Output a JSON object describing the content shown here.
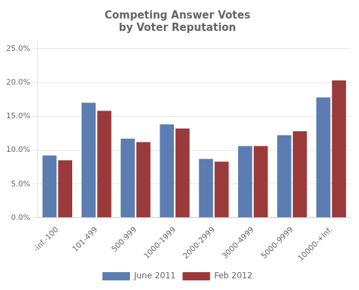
{
  "chart_data": {
    "type": "bar",
    "title": "Competing Answer Votes\nby Voter Reputation",
    "categories": [
      "-inf.-100",
      "101-499",
      "500-999",
      "1000-1999",
      "2000-2999",
      "3000-4999",
      "5000-9999",
      "10000-+inf."
    ],
    "series": [
      {
        "name": "June 2011",
        "color": "#5b7db1",
        "values": [
          0.092,
          0.17,
          0.117,
          0.138,
          0.087,
          0.106,
          0.122,
          0.178
        ]
      },
      {
        "name": "Feb 2012",
        "color": "#9b3a3a",
        "values": [
          0.085,
          0.158,
          0.112,
          0.132,
          0.083,
          0.106,
          0.128,
          0.203
        ]
      }
    ],
    "ylim": [
      0.0,
      0.261
    ],
    "yticks": [
      {
        "value": 0.0,
        "label": "0.0%"
      },
      {
        "value": 0.05,
        "label": "5.0%"
      },
      {
        "value": 0.1,
        "label": "10.0%"
      },
      {
        "value": 0.15,
        "label": "15.0%"
      },
      {
        "value": 0.2,
        "label": "20.0%"
      },
      {
        "value": 0.25,
        "label": "25.0%"
      }
    ],
    "grid": true,
    "legend": "bottom"
  }
}
